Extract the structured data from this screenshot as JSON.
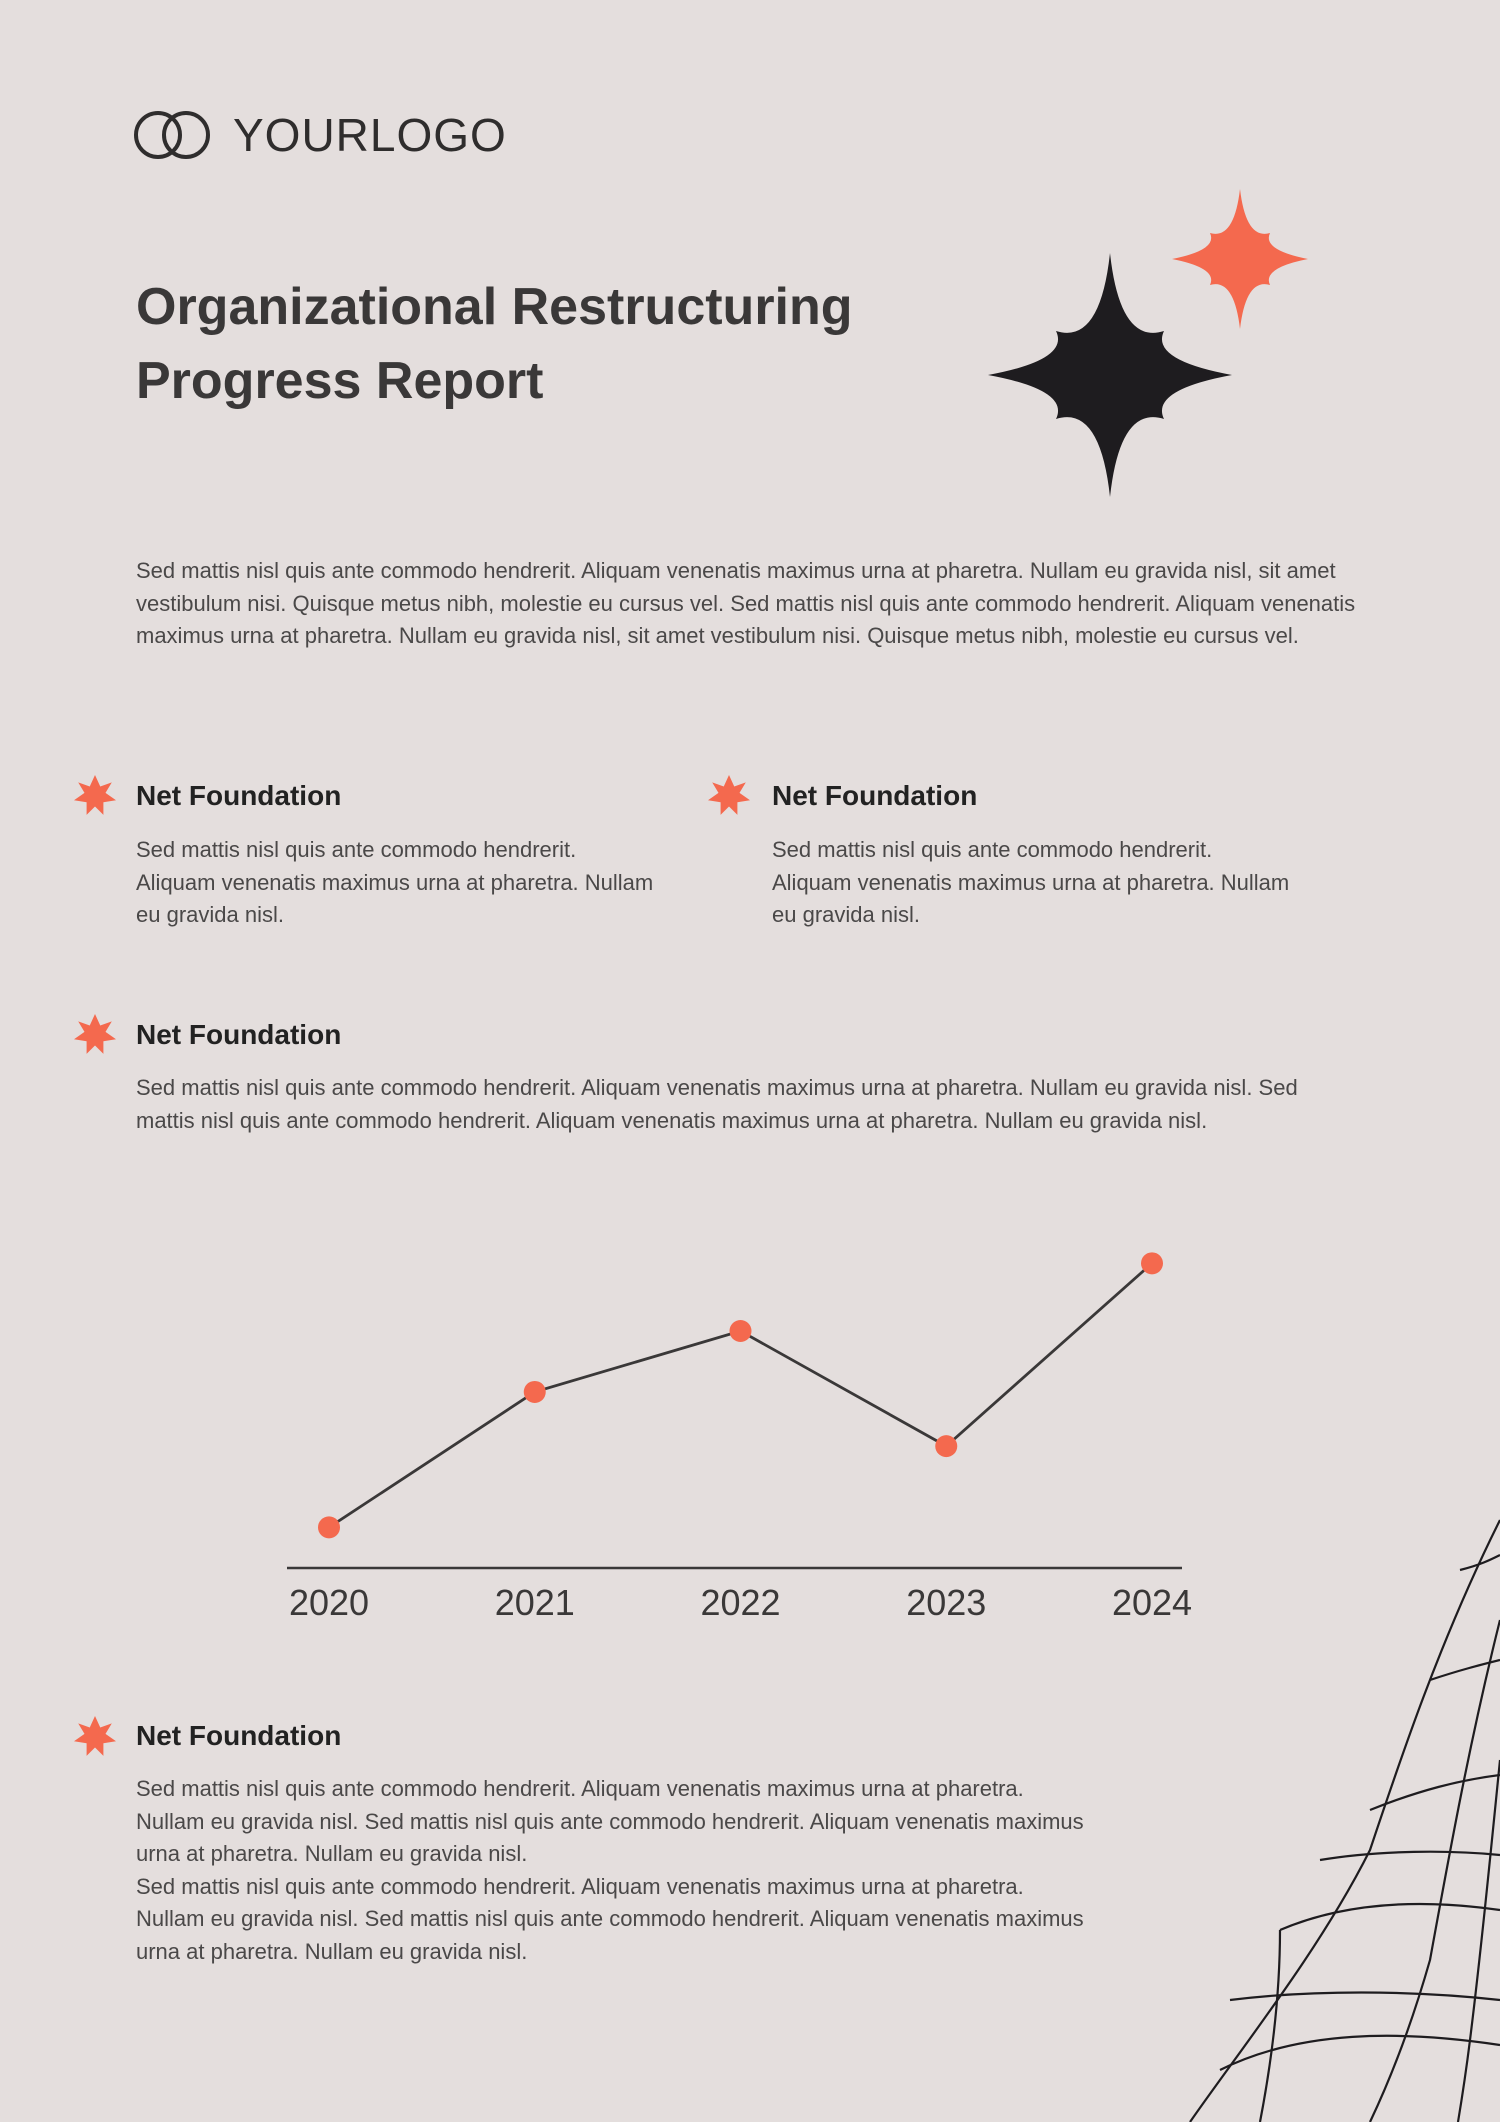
{
  "header": {
    "logo": "YOURLOGO"
  },
  "title": [
    "Organizational Restructuring",
    "Progress Report"
  ],
  "intro": "Sed mattis nisl quis ante commodo hendrerit. Aliquam venenatis maximus urna at pharetra. Nullam eu gravida nisl, sit amet vestibulum nisi.  Quisque metus nibh, molestie eu cursus vel. Sed mattis nisl quis ante commodo hendrerit. Aliquam venenatis maximus urna at pharetra. Nullam eu gravida nisl, sit amet vestibulum nisi. Quisque metus nibh, molestie eu cursus vel.",
  "sections": [
    {
      "heading": "Net Foundation",
      "body": [
        "Sed mattis nisl quis ante commodo hendrerit. Aliquam venenatis maximus urna at pharetra. Nullam eu gravida nisl."
      ]
    },
    {
      "heading": "Net Foundation",
      "body": [
        "Sed mattis nisl quis ante commodo hendrerit. Aliquam venenatis maximus urna at pharetra. Nullam eu gravida nisl."
      ]
    },
    {
      "heading": "Net Foundation",
      "body": [
        "Sed mattis nisl quis ante commodo hendrerit. Aliquam venenatis maximus urna at pharetra. Nullam eu gravida nisl. Sed mattis nisl quis ante commodo hendrerit. Aliquam venenatis maximus urna at pharetra. Nullam eu gravida nisl."
      ]
    },
    {
      "heading": "Net Foundation",
      "body": [
        "Sed mattis nisl quis ante commodo hendrerit. Aliquam venenatis maximus urna at pharetra. Nullam eu gravida nisl. Sed mattis nisl quis ante commodo hendrerit. Aliquam venenatis maximus urna at pharetra. Nullam eu gravida nisl.",
        "Sed mattis nisl quis ante commodo hendrerit. Aliquam venenatis maximus urna at pharetra. Nullam eu gravida nisl. Sed mattis nisl quis ante commodo hendrerit. Aliquam venenatis maximus urna at pharetra. Nullam eu gravida nisl."
      ]
    }
  ],
  "chart_data": {
    "type": "line",
    "categories": [
      "2020",
      "2021",
      "2022",
      "2023",
      "2024"
    ],
    "values": [
      30,
      130,
      175,
      90,
      225
    ],
    "ylim": [
      0,
      240
    ],
    "line_color": "#3a3838",
    "marker_color": "#f4694e"
  }
}
